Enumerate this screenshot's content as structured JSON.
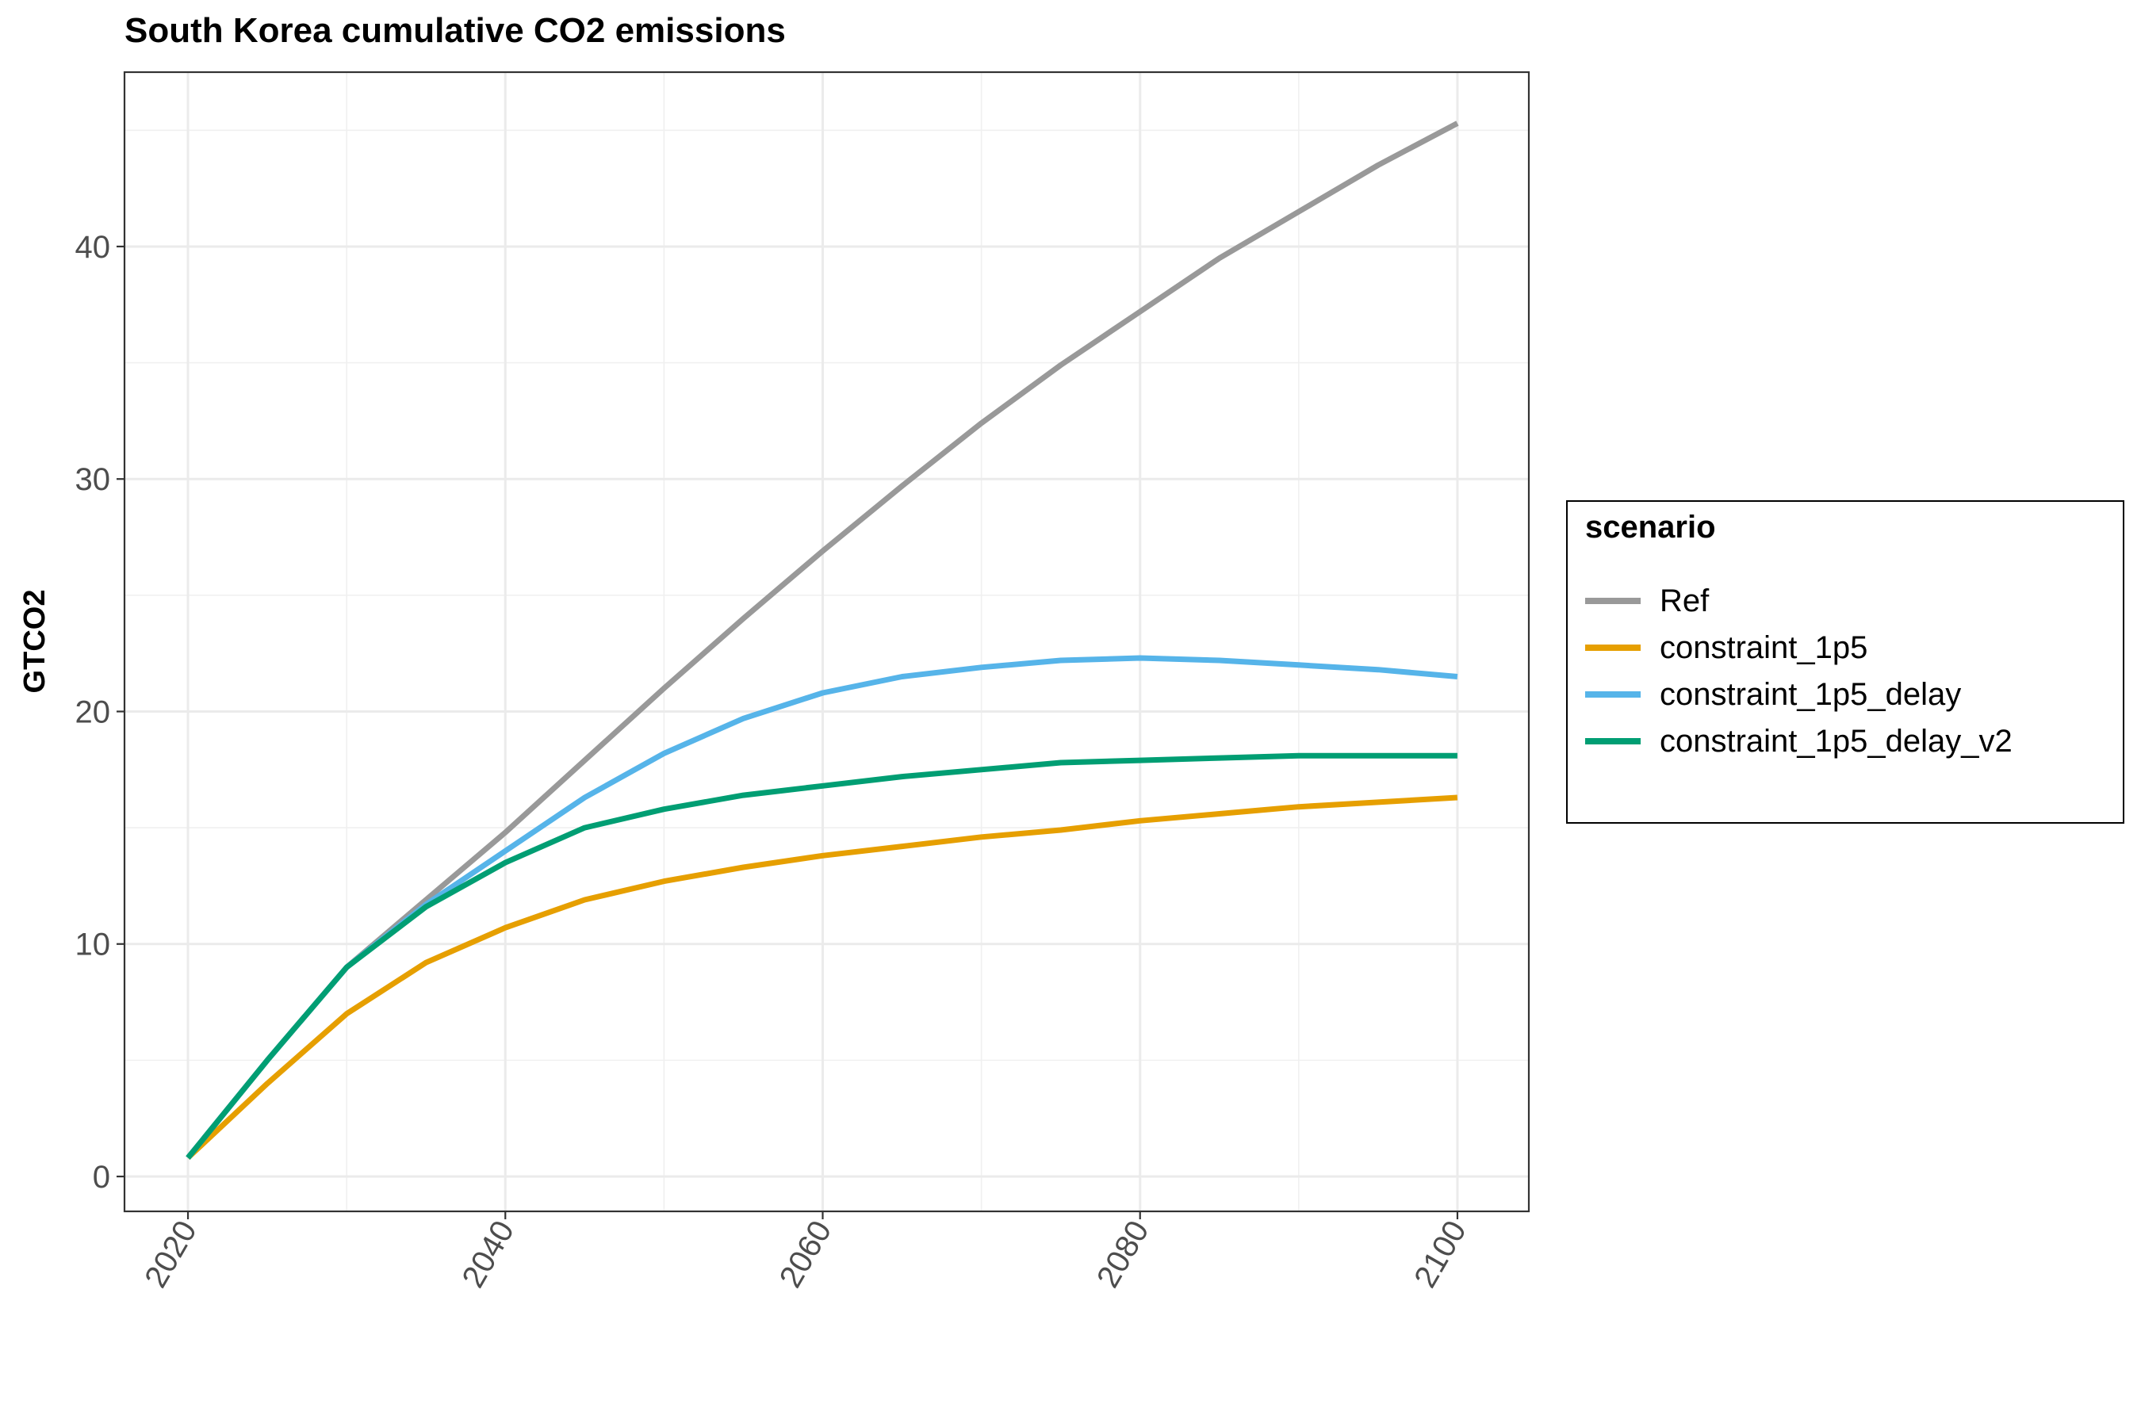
{
  "chart_data": {
    "type": "line",
    "title": "South Korea cumulative CO2 emissions",
    "xlabel": "",
    "ylabel": "GTCO2",
    "xlim": [
      2016,
      2104.5
    ],
    "ylim": [
      -1.5,
      47.5
    ],
    "x_ticks": [
      2020,
      2040,
      2060,
      2080,
      2100
    ],
    "x_minor_ticks": [
      2030,
      2050,
      2070,
      2090
    ],
    "y_ticks": [
      0,
      10,
      20,
      30,
      40
    ],
    "y_minor_ticks": [
      5,
      15,
      25,
      35,
      45
    ],
    "grid": true,
    "legend_title": "scenario",
    "legend_position": "right",
    "x": [
      2020,
      2025,
      2030,
      2035,
      2040,
      2045,
      2050,
      2055,
      2060,
      2065,
      2070,
      2075,
      2080,
      2085,
      2090,
      2095,
      2100
    ],
    "series": [
      {
        "name": "Ref",
        "color": "#999999",
        "values": [
          0.8,
          5.0,
          9.0,
          11.9,
          14.8,
          17.9,
          21.0,
          24.0,
          26.9,
          29.7,
          32.4,
          34.9,
          37.2,
          39.5,
          41.5,
          43.5,
          45.3
        ]
      },
      {
        "name": "constraint_1p5",
        "color": "#E69F00",
        "values": [
          0.8,
          4.0,
          7.0,
          9.2,
          10.7,
          11.9,
          12.7,
          13.3,
          13.8,
          14.2,
          14.6,
          14.9,
          15.3,
          15.6,
          15.9,
          16.1,
          16.3
        ]
      },
      {
        "name": "constraint_1p5_delay",
        "color": "#56B4E9",
        "values": [
          0.8,
          5.0,
          9.0,
          11.7,
          14.0,
          16.3,
          18.2,
          19.7,
          20.8,
          21.5,
          21.9,
          22.2,
          22.3,
          22.2,
          22.0,
          21.8,
          21.5
        ]
      },
      {
        "name": "constraint_1p5_delay_v2",
        "color": "#009E73",
        "values": [
          0.8,
          5.0,
          9.0,
          11.6,
          13.5,
          15.0,
          15.8,
          16.4,
          16.8,
          17.2,
          17.5,
          17.8,
          17.9,
          18.0,
          18.1,
          18.1,
          18.1
        ]
      }
    ]
  }
}
